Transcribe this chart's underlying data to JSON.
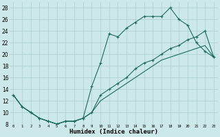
{
  "xlabel": "Humidex (Indice chaleur)",
  "bg_color": "#cce8e8",
  "grid_color": "#aacece",
  "line_color": "#1a6b5a",
  "xlim": [
    -0.5,
    23.5
  ],
  "ylim": [
    8,
    29
  ],
  "xticks": [
    0,
    1,
    2,
    3,
    4,
    5,
    6,
    7,
    8,
    9,
    10,
    11,
    12,
    13,
    14,
    15,
    16,
    17,
    18,
    19,
    20,
    21,
    22,
    23
  ],
  "yticks": [
    8,
    10,
    12,
    14,
    16,
    18,
    20,
    22,
    24,
    26,
    28
  ],
  "line1_x": [
    0,
    1,
    2,
    3,
    4,
    5,
    6,
    7,
    8,
    9,
    10,
    11,
    12,
    13,
    14,
    15,
    16,
    17,
    18,
    19,
    20,
    21,
    22,
    23
  ],
  "line1_y": [
    13,
    11,
    10,
    9,
    8.5,
    8,
    8.5,
    8.5,
    9,
    14.5,
    18.5,
    23.5,
    23,
    24.5,
    25.5,
    26.5,
    26.5,
    26.5,
    28,
    26,
    25,
    22,
    20.5,
    19.5
  ],
  "line2_x": [
    0,
    1,
    2,
    3,
    4,
    5,
    6,
    7,
    8,
    9,
    10,
    11,
    12,
    13,
    14,
    15,
    16,
    17,
    18,
    19,
    20,
    21,
    22,
    23
  ],
  "line2_y": [
    13,
    11,
    10,
    9,
    8.5,
    8,
    8.5,
    8.5,
    9,
    10,
    13,
    14,
    15,
    16,
    17.5,
    18.5,
    19,
    20,
    21,
    21.5,
    22.5,
    23,
    24,
    19.5
  ],
  "line3_x": [
    0,
    1,
    2,
    3,
    4,
    5,
    6,
    7,
    8,
    9,
    10,
    11,
    12,
    13,
    14,
    15,
    16,
    17,
    18,
    19,
    20,
    21,
    22,
    23
  ],
  "line3_y": [
    13,
    11,
    10,
    9,
    8.5,
    8,
    8.5,
    8.5,
    9,
    10,
    12,
    13,
    14,
    15,
    16,
    17,
    18,
    19,
    19.5,
    20,
    20.5,
    21,
    21.5,
    19.5
  ]
}
